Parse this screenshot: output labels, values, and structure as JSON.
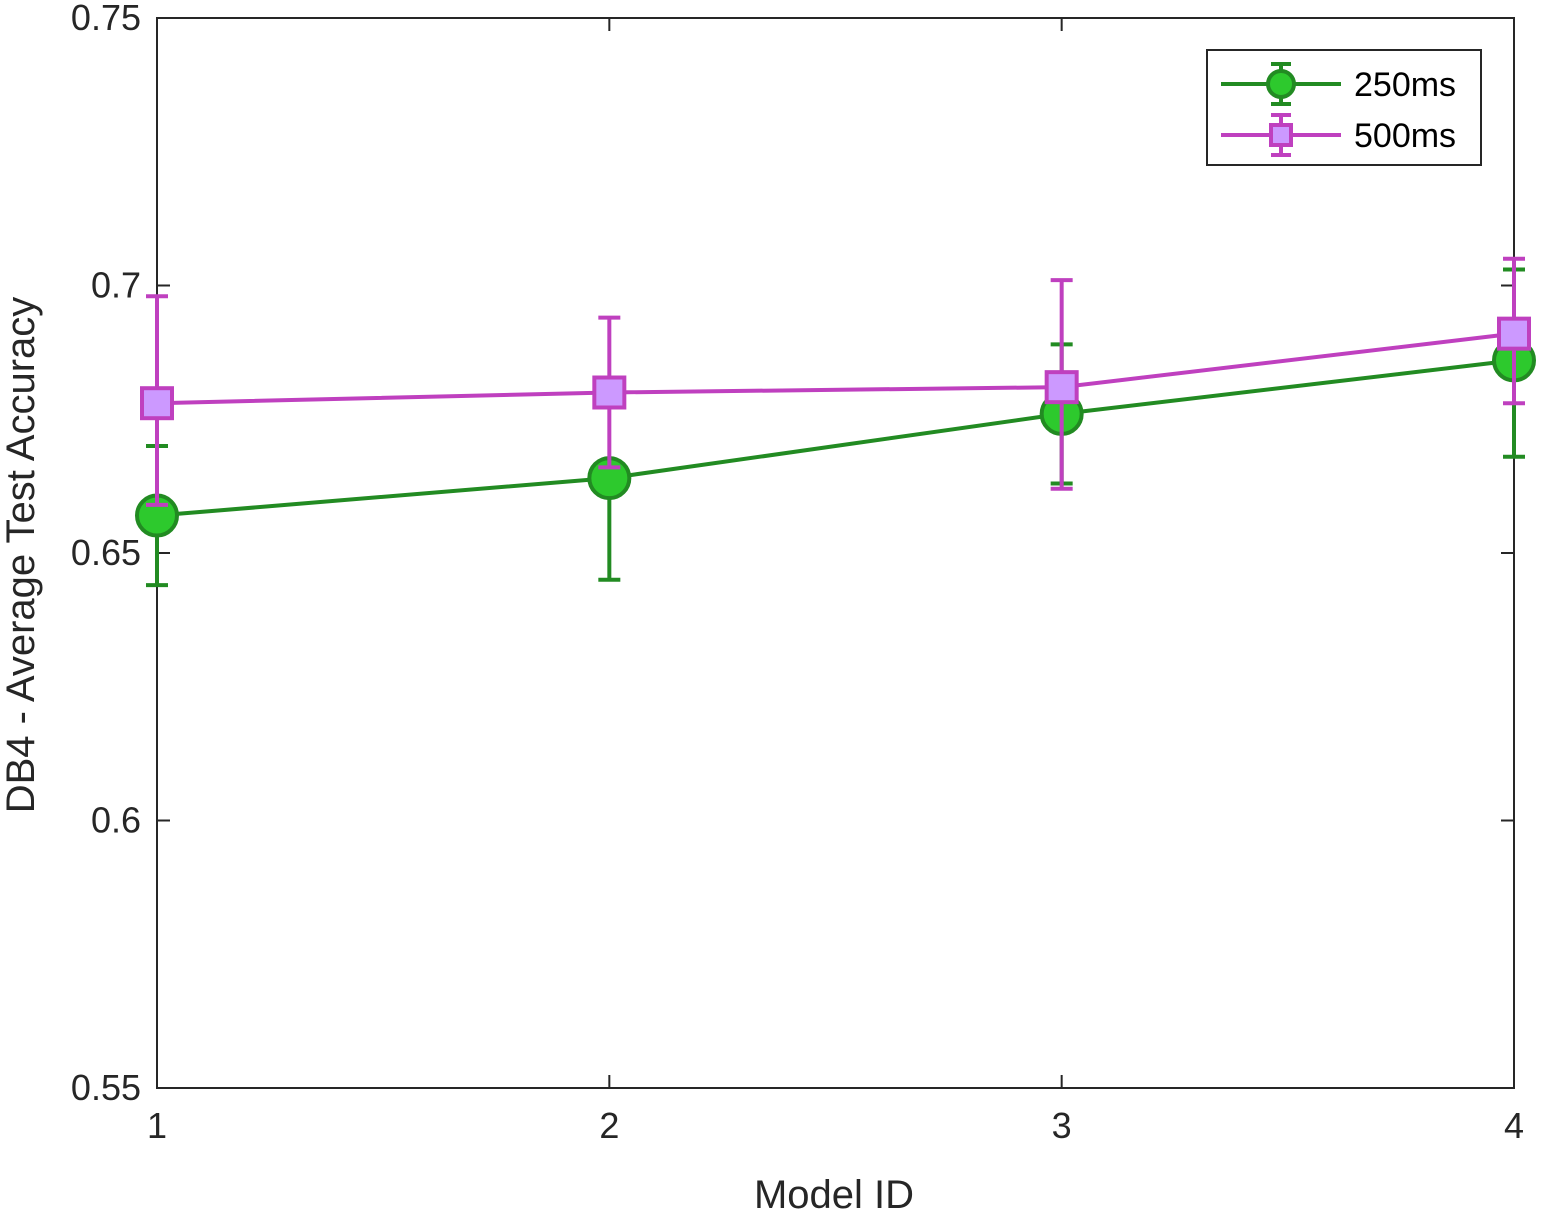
{
  "chart_data": {
    "type": "line",
    "title": "",
    "xlabel": "Model ID",
    "ylabel": "DB4 - Average Test Accuracy",
    "xlim": [
      1,
      4
    ],
    "ylim": [
      0.55,
      0.75
    ],
    "x_ticks": [
      1,
      2,
      3,
      4
    ],
    "x_tick_labels": [
      "1",
      "2",
      "3",
      "4"
    ],
    "y_ticks": [
      0.55,
      0.6,
      0.65,
      0.7,
      0.75
    ],
    "y_tick_labels": [
      "0.55",
      "0.6",
      "0.65",
      "0.7",
      "0.75"
    ],
    "grid": false,
    "legend_position": "top-right",
    "x": [
      1,
      2,
      3,
      4
    ],
    "series": [
      {
        "name": "250ms",
        "marker": "circle",
        "color": "#228B22",
        "fill": "#2DC92D",
        "values": [
          0.657,
          0.664,
          0.676,
          0.686
        ],
        "err_low": [
          0.644,
          0.645,
          0.663,
          0.668
        ],
        "err_high": [
          0.67,
          0.664,
          0.689,
          0.703
        ]
      },
      {
        "name": "500ms",
        "marker": "square",
        "color": "#BF40BF",
        "fill": "#CC99FF",
        "values": [
          0.678,
          0.68,
          0.681,
          0.691
        ],
        "err_low": [
          0.659,
          0.666,
          0.662,
          0.678
        ],
        "err_high": [
          0.698,
          0.694,
          0.701,
          0.705
        ]
      }
    ]
  }
}
